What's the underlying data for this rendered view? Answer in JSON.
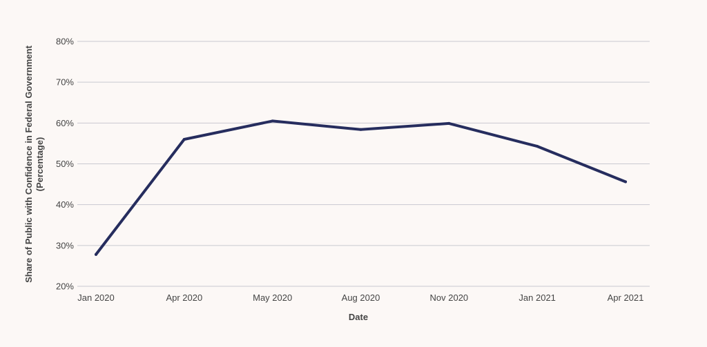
{
  "chart_data": {
    "type": "line",
    "title": "",
    "xlabel": "Date",
    "ylabel": "Share of Public with Confidence in Federal Government",
    "ylabel_sub": "(Percentage)",
    "categories": [
      "Jan 2020",
      "Apr 2020",
      "May 2020",
      "Aug 2020",
      "Nov 2020",
      "Jan 2021",
      "Apr 2021"
    ],
    "series": [
      {
        "values": [
          27.8,
          56.0,
          60.5,
          58.4,
          59.9,
          54.3,
          45.6
        ]
      }
    ],
    "ylim": [
      20,
      80
    ],
    "yticks": [
      20,
      30,
      40,
      50,
      60,
      70,
      80
    ],
    "ytick_labels": [
      "20%",
      "30%",
      "40%",
      "50%",
      "60%",
      "70%",
      "80%"
    ],
    "grid": true,
    "legend": "none",
    "colors": {
      "line": "#262d5e",
      "grid": "#c9c9d0",
      "background": "#fcf8f6",
      "text": "#444444"
    }
  }
}
